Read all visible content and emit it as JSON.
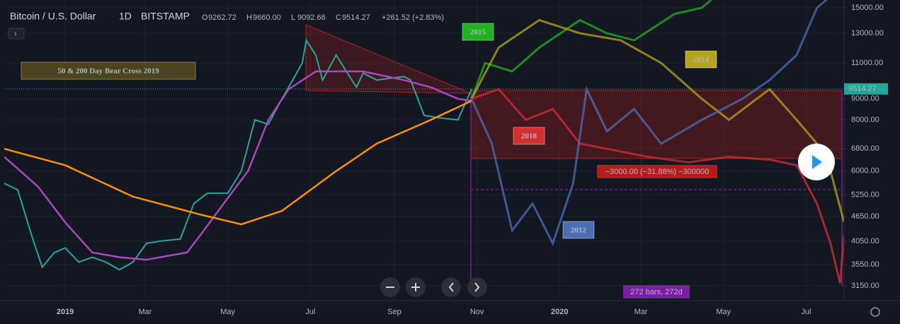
{
  "chart_data": {
    "type": "line",
    "log": true,
    "symbol": "Bitcoin / U.S. Dollar",
    "interval": "1D",
    "exchange": "BITSTAMP",
    "ohlc": [
      {
        "label": "O",
        "value": "9262.72"
      },
      {
        "label": "H",
        "value": "9660.00"
      },
      {
        "label": "L",
        "value": "9092.66"
      },
      {
        "label": "C",
        "value": "9514.27"
      }
    ],
    "change": "+261.52 (+2.83%)",
    "title": "50 & 200 Day Bear Cross 2019",
    "measure_label": "−3000.00 (−31.88%) −300000",
    "range_label": "272 bars, 272d",
    "last_price": 9514.27,
    "xlim": [
      -45,
      575
    ],
    "xticks": [
      {
        "value": 0,
        "label": "2019"
      },
      {
        "value": 59,
        "label": "Mar"
      },
      {
        "value": 120,
        "label": "May"
      },
      {
        "value": 181,
        "label": "Jul"
      },
      {
        "value": 243,
        "label": "Sep"
      },
      {
        "value": 304,
        "label": "Nov"
      },
      {
        "value": 365,
        "label": "2020"
      },
      {
        "value": 425,
        "label": "Mar"
      },
      {
        "value": 486,
        "label": "May"
      },
      {
        "value": 547,
        "label": "Jul"
      }
    ],
    "ylim": [
      2900,
      15670
    ],
    "yticks": [
      {
        "value": 3150,
        "label": "3150.00"
      },
      {
        "value": 3550,
        "label": "3550.00"
      },
      {
        "value": 4050,
        "label": "4050.00"
      },
      {
        "value": 4650,
        "label": "4650.00"
      },
      {
        "value": 5250,
        "label": "5250.00"
      },
      {
        "value": 6000,
        "label": "6000.00"
      },
      {
        "value": 6800,
        "label": "6800.00"
      },
      {
        "value": 8000,
        "label": "8000.00"
      },
      {
        "value": 9000,
        "label": "9000.00"
      },
      {
        "value": 11000,
        "label": "11000.00"
      },
      {
        "value": 13000,
        "label": "13000.00"
      },
      {
        "value": 15000,
        "label": "15000.00"
      }
    ],
    "grid": true,
    "series": [
      {
        "color": "#26a69a",
        "x": [
          -45,
          -35,
          -25,
          -17,
          -8,
          0,
          10,
          20,
          30,
          40,
          50,
          60,
          70,
          85,
          95,
          105,
          120,
          130,
          140,
          150,
          160,
          168,
          175,
          178,
          185,
          190,
          200,
          210,
          215,
          220,
          230,
          240,
          250,
          255,
          265,
          275,
          290,
          300
        ],
        "values": [
          5600,
          5400,
          4200,
          3500,
          3800,
          3900,
          3600,
          3700,
          3600,
          3450,
          3600,
          4000,
          4050,
          4100,
          5000,
          5300,
          5300,
          6000,
          8000,
          7800,
          9000,
          10000,
          11000,
          12500,
          11500,
          10000,
          11500,
          10200,
          9600,
          10400,
          10000,
          10100,
          10200,
          10000,
          8200,
          8100,
          8000,
          9514.27
        ]
      },
      {
        "color": "#ab47bc",
        "x": [
          -45,
          -20,
          0,
          20,
          40,
          60,
          90,
          100,
          115,
          135,
          150,
          165,
          185,
          220,
          250,
          270,
          290,
          300
        ],
        "values": [
          6500,
          5500,
          4500,
          3800,
          3700,
          3650,
          3800,
          4200,
          4900,
          6000,
          8000,
          9500,
          10500,
          10500,
          10000,
          9600,
          9000,
          8900
        ]
      },
      {
        "color": "#ff8f00",
        "x": [
          -45,
          0,
          50,
          100,
          130,
          160,
          200,
          230,
          270,
          300
        ],
        "values": [
          6800,
          6200,
          5200,
          4700,
          4450,
          4800,
          6000,
          7000,
          8000,
          8900
        ]
      },
      {
        "name": "2015",
        "color": "#1fb31f",
        "x": [
          300,
          310,
          330,
          350,
          380,
          400,
          420,
          450,
          470,
          480
        ],
        "values": [
          9000,
          11000,
          10500,
          12000,
          14000,
          13000,
          12500,
          14500,
          15000,
          16000
        ]
      },
      {
        "name": "2014",
        "color": "#b5a51c",
        "x": [
          300,
          320,
          350,
          380,
          410,
          440,
          470,
          490,
          520,
          540,
          555,
          565,
          575
        ],
        "values": [
          9000,
          12000,
          14000,
          13000,
          12500,
          11000,
          9000,
          8000,
          9500,
          8000,
          7000,
          6000,
          4500
        ]
      },
      {
        "name": "2018",
        "color": "#d32f2f",
        "x": [
          300,
          320,
          340,
          360,
          380,
          400,
          430,
          460,
          490,
          520,
          540,
          555,
          565,
          572,
          575
        ],
        "values": [
          9000,
          9500,
          8000,
          8500,
          7000,
          6800,
          6500,
          6300,
          6500,
          6400,
          6200,
          5000,
          4000,
          3200,
          4200
        ]
      },
      {
        "name": "2012",
        "color": "#4a6fb5",
        "x": [
          300,
          315,
          330,
          345,
          360,
          375,
          385,
          400,
          420,
          440,
          470,
          500,
          520,
          540,
          555,
          565
        ],
        "values": [
          9000,
          7000,
          4300,
          5000,
          4000,
          5600,
          9500,
          7500,
          8500,
          7000,
          8000,
          9000,
          10000,
          11500,
          15000,
          16000
        ]
      }
    ]
  }
}
